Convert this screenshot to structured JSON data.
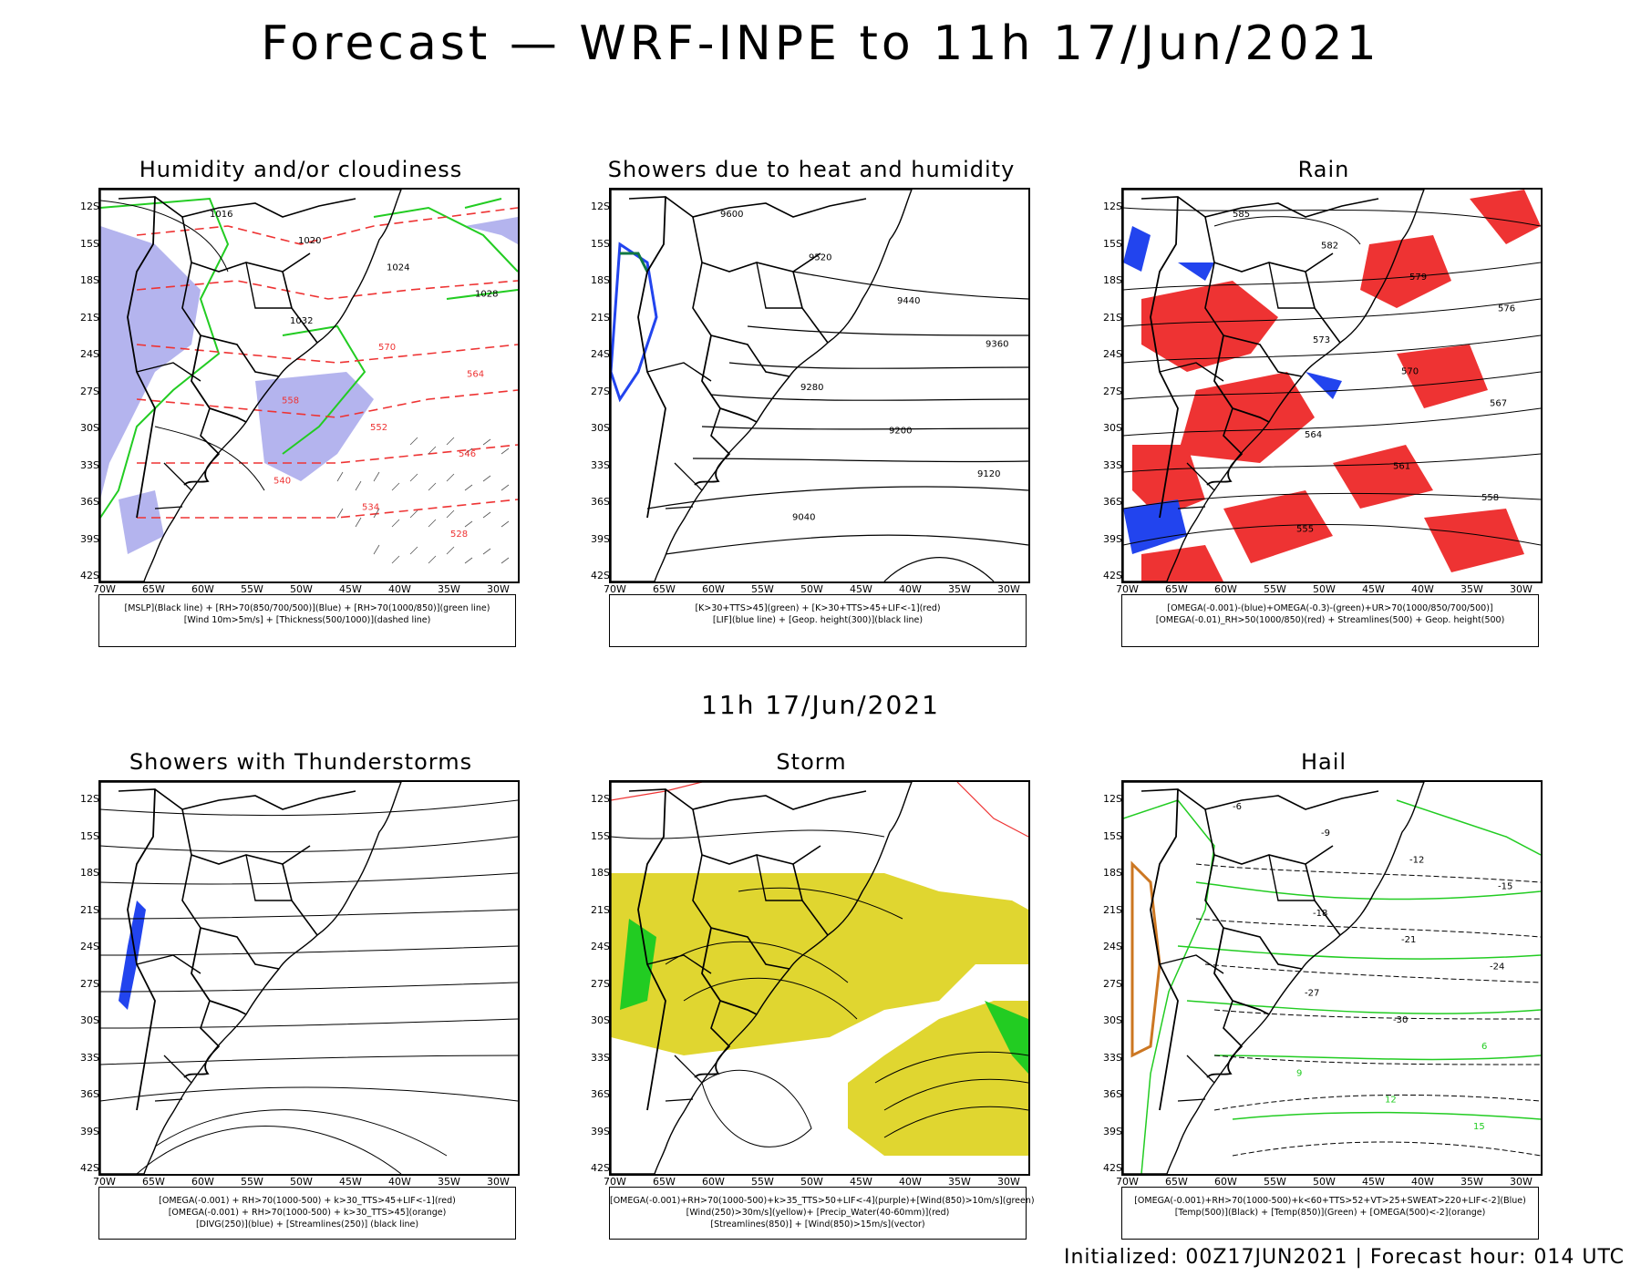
{
  "title": "Forecast — WRF-INPE to 11h 17/Jun/2021",
  "mid_title": "11h 17/Jun/2021",
  "footer": "Initialized: 00Z17JUN2021 | Forecast hour: 014 UTC",
  "lat_labels": [
    "12S",
    "15S",
    "18S",
    "21S",
    "24S",
    "27S",
    "30S",
    "33S",
    "36S",
    "39S",
    "42S"
  ],
  "lon_labels": [
    "70W",
    "65W",
    "60W",
    "55W",
    "50W",
    "45W",
    "40W",
    "35W",
    "30W"
  ],
  "colors": {
    "rh_blue": "#b4b4ee",
    "green": "#22cc22",
    "red": "#ee3333",
    "yellow": "#e0d630",
    "precip_blue": "#2244ee"
  },
  "panels": [
    {
      "title": "Humidity and/or cloudiness",
      "legend": [
        "[MSLP](Black line) + [RH>70(850/700/500)](Blue) + [RH>70(1000/850)](green line)",
        "[Wind 10m>5m/s] + [Thickness(500/1000)](dashed line)"
      ],
      "contour_labels": [
        "1016",
        "1020",
        "1024",
        "1028",
        "1032",
        "570",
        "564",
        "558",
        "552",
        "546",
        "540",
        "534",
        "528"
      ]
    },
    {
      "title": "Showers due to heat and humidity",
      "legend": [
        "[K>30+TTS>45](green) + [K>30+TTS>45+LIF<-1](red)",
        "[LIF](blue line) + [Geop. height(300)](black line)"
      ],
      "contour_labels": [
        "9600",
        "9520",
        "9440",
        "9360",
        "9280",
        "9200",
        "9120",
        "9040"
      ]
    },
    {
      "title": "Rain",
      "legend": [
        "[OMEGA(-0.001)-(blue)+OMEGA(-0.3)-(green)+UR>70(1000/850/700/500)]",
        "[OMEGA(-0.01)_RH>50(1000/850)(red) + Streamlines(500) + Geop. height(500)"
      ],
      "contour_labels": [
        "585",
        "582",
        "579",
        "576",
        "573",
        "570",
        "567",
        "564",
        "561",
        "558",
        "555"
      ]
    },
    {
      "title": "Showers with Thunderstorms",
      "legend": [
        "[OMEGA(-0.001) + RH>70(1000-500) + k>30_TTS>45+LIF<-1](red)",
        "[OMEGA(-0.001) + RH>70(1000-500) + k>30_TTS>45](orange)",
        "[DIVG(250)](blue) + [Streamlines(250)] (black line)"
      ],
      "contour_labels": []
    },
    {
      "title": "Storm",
      "legend": [
        "[OMEGA(-0.001)+RH>70(1000-500)+k>35_TTS>50+LIF<-4](purple)+[Wind(850)>10m/s](green)",
        "[Wind(250)>30m/s](yellow)+ [Precip_Water(40-60mm)](red)",
        "[Streamlines(850)] + [Wind(850)>15m/s](vector)"
      ],
      "contour_labels": []
    },
    {
      "title": "Hail",
      "legend": [
        "[OMEGA(-0.001)+RH>70(1000-500)+k<60+TTS>52+VT>25+SWEAT>220+LIF<-2](Blue)",
        "[Temp(500)](Black) + [Temp(850)](Green) + [OMEGA(500)<-2](orange)"
      ],
      "contour_labels": [
        "-6",
        "-9",
        "-12",
        "-15",
        "-18",
        "-21",
        "-24",
        "-27",
        "-30",
        "6",
        "9",
        "12",
        "15"
      ]
    }
  ]
}
